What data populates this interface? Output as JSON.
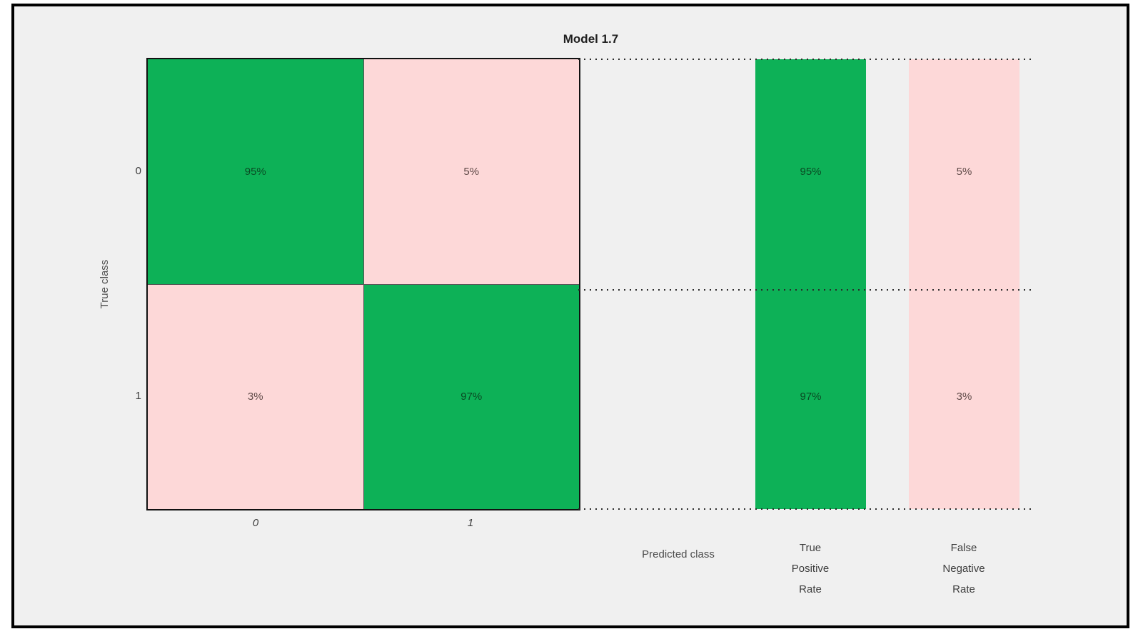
{
  "figure": {
    "title": "Model 1.7"
  },
  "colors": {
    "diagonal_green": "#0db157",
    "off_diagonal_pink": "#fdd8d8",
    "green_cell_text": "#0a4a23",
    "pink_cell_text": "#5f4a48",
    "figure_background": "#f0f0f0",
    "frame_border": "#000000"
  },
  "axes": {
    "y_label": "True class",
    "x_label": "Predicted class",
    "y_ticks": [
      "0",
      "1"
    ],
    "x_ticks": [
      "0",
      "1"
    ]
  },
  "matrix": {
    "cells": [
      {
        "row": "0",
        "col": "0",
        "value": "95%",
        "tone": "green"
      },
      {
        "row": "0",
        "col": "1",
        "value": "5%",
        "tone": "pink"
      },
      {
        "row": "1",
        "col": "0",
        "value": "3%",
        "tone": "pink"
      },
      {
        "row": "1",
        "col": "1",
        "value": "97%",
        "tone": "green"
      }
    ]
  },
  "summary": {
    "tpr": {
      "label_lines": [
        "True",
        "Positive",
        "Rate"
      ],
      "values": [
        "95%",
        "97%"
      ],
      "tone": "green"
    },
    "fnr": {
      "label_lines": [
        "False",
        "Negative",
        "Rate"
      ],
      "values": [
        "5%",
        "3%"
      ],
      "tone": "pink"
    }
  },
  "chart_data": {
    "type": "heatmap",
    "subtype": "confusion-matrix-row-normalized",
    "title": "Model 1.7",
    "xlabel": "Predicted class",
    "ylabel": "True class",
    "classes": [
      "0",
      "1"
    ],
    "matrix_percent": [
      [
        95,
        5
      ],
      [
        3,
        97
      ]
    ],
    "summary_columns": [
      {
        "name": "True Positive Rate",
        "values_percent": [
          95,
          97
        ],
        "color": "#0db157"
      },
      {
        "name": "False Negative Rate",
        "values_percent": [
          5,
          3
        ],
        "color": "#fdd8d8"
      }
    ],
    "diagonal_color": "#0db157",
    "off_diagonal_color": "#fdd8d8",
    "background": "#f0f0f0",
    "legend": "none",
    "grid": "off",
    "separator_lines": "dotted, at top, middle and bottom of rows, spanning matrix edge to summary columns"
  }
}
